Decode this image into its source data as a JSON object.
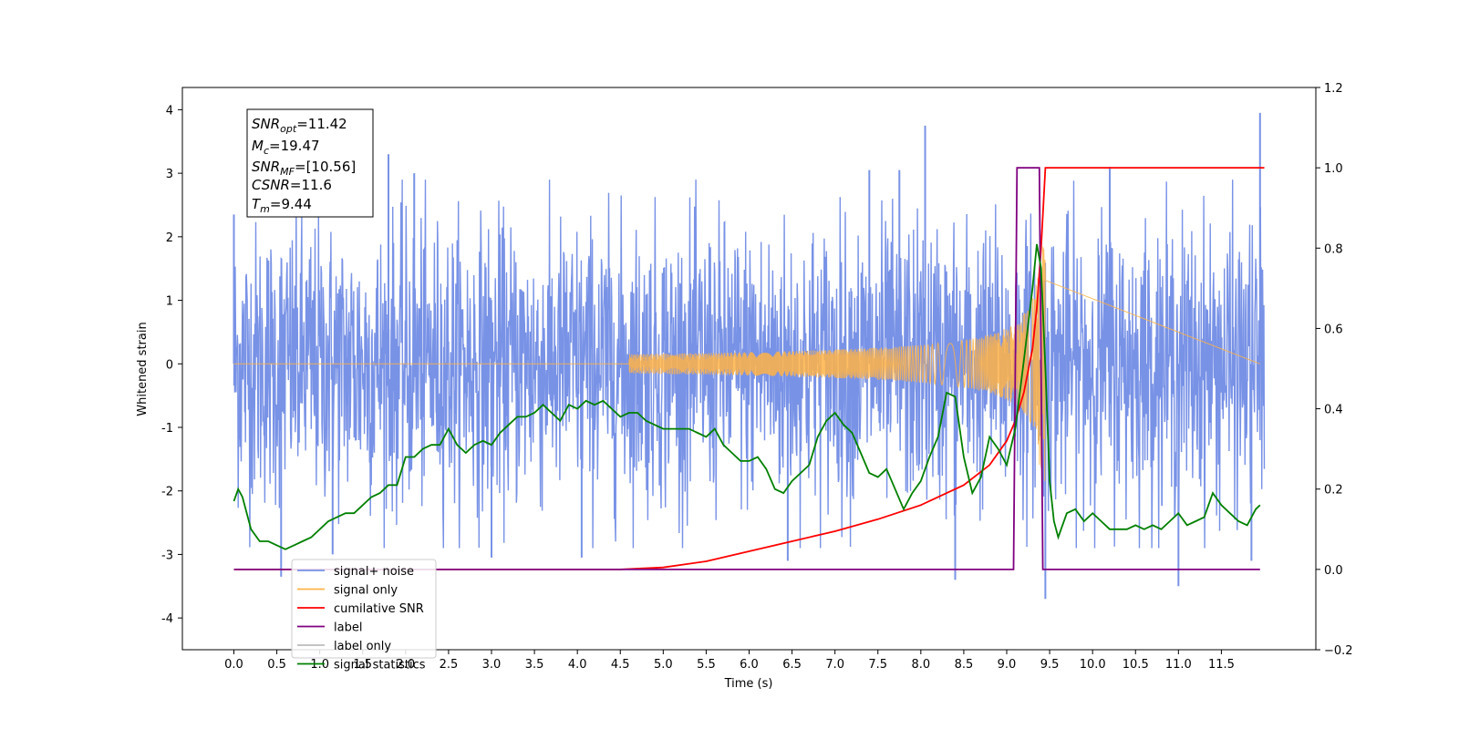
{
  "chart_data": {
    "type": "line",
    "xlabel": "Time (s)",
    "ylabel": "Whitened strain",
    "xlim": [
      -0.6,
      12.6
    ],
    "ylim": [
      -4.5,
      4.35
    ],
    "ylim_right": [
      -0.2,
      1.2
    ],
    "x_ticks": [
      "0.0",
      "0.5",
      "1.0",
      "1.5",
      "2.0",
      "2.5",
      "3.0",
      "3.5",
      "4.0",
      "4.5",
      "5.0",
      "5.5",
      "6.0",
      "6.5",
      "7.0",
      "7.5",
      "8.0",
      "8.5",
      "9.0",
      "9.5",
      "10.0",
      "10.5",
      "11.0",
      "11.5"
    ],
    "y_ticks_left": [
      "4",
      "3",
      "2",
      "1",
      "0",
      "-1",
      "-2",
      "-3",
      "-4"
    ],
    "y_ticks_right": [
      "1.2",
      "1.0",
      "0.8",
      "0.6",
      "0.4",
      "0.2",
      "0.0",
      "−0.2"
    ],
    "legend_position": "lower-left",
    "info_box": {
      "lines": [
        {
          "main": "SNR",
          "sub": "opt",
          "value": "=11.42"
        },
        {
          "main": "M",
          "sub": "c",
          "value": "=19.47"
        },
        {
          "main": "SNR",
          "sub": "MF",
          "value": "=[10.56]"
        },
        {
          "main": "CSNR",
          "sub": "",
          "value": "=11.6"
        },
        {
          "main": "T",
          "sub": "m",
          "value": "=9.44"
        }
      ]
    },
    "series": [
      {
        "name": "signal+ noise",
        "axis": "left",
        "color": "#7892e6",
        "envelope": {
          "x": [
            0.0,
            12.0
          ],
          "typical_abs": 2.0,
          "spikes_x": [
            0.0,
            0.55,
            1.15,
            1.8,
            2.1,
            3.0,
            4.05,
            6.45,
            7.4,
            7.75,
            8.05,
            8.4,
            9.45,
            10.2,
            11.0,
            11.85,
            11.95
          ],
          "spikes_y": [
            2.35,
            -3.35,
            -3.0,
            3.3,
            3.0,
            -3.05,
            -3.05,
            -3.1,
            3.05,
            3.05,
            3.75,
            -3.4,
            -3.7,
            3.1,
            -3.5,
            -3.1,
            3.95
          ]
        }
      },
      {
        "name": "signal only",
        "axis": "left",
        "color": "#ffb347",
        "chirp": {
          "start": 4.6,
          "peak": 9.4,
          "end": 9.45,
          "max_amplitude": 1.9
        }
      },
      {
        "name": "cumilative SNR",
        "axis": "right",
        "color": "#ff0000",
        "x": [
          0.0,
          4.5,
          5.0,
          5.5,
          6.0,
          6.5,
          7.0,
          7.5,
          8.0,
          8.5,
          8.8,
          9.0,
          9.1,
          9.2,
          9.3,
          9.35,
          9.4,
          9.45,
          12.0
        ],
        "values": [
          0.0,
          0.0,
          0.005,
          0.02,
          0.045,
          0.07,
          0.095,
          0.125,
          0.16,
          0.21,
          0.26,
          0.32,
          0.37,
          0.44,
          0.55,
          0.65,
          0.8,
          1.0,
          1.0
        ]
      },
      {
        "name": "label",
        "axis": "right",
        "color": "#800080",
        "x": [
          0.0,
          9.08,
          9.12,
          9.38,
          9.42,
          11.95
        ],
        "values": [
          0.0,
          0.0,
          1.0,
          1.0,
          0.0,
          0.0
        ]
      },
      {
        "name": "label only",
        "axis": "right",
        "color": "#bbbbbb",
        "x": [],
        "values": []
      },
      {
        "name": "signal statistics",
        "axis": "right",
        "color": "#008000",
        "x": [
          0.0,
          0.05,
          0.1,
          0.2,
          0.3,
          0.4,
          0.5,
          0.6,
          0.7,
          0.8,
          0.9,
          1.0,
          1.1,
          1.2,
          1.3,
          1.4,
          1.5,
          1.6,
          1.7,
          1.8,
          1.9,
          2.0,
          2.1,
          2.2,
          2.3,
          2.4,
          2.5,
          2.6,
          2.7,
          2.8,
          2.9,
          3.0,
          3.1,
          3.2,
          3.3,
          3.4,
          3.5,
          3.6,
          3.7,
          3.8,
          3.9,
          4.0,
          4.1,
          4.2,
          4.3,
          4.4,
          4.5,
          4.6,
          4.7,
          4.8,
          4.9,
          5.0,
          5.1,
          5.2,
          5.3,
          5.4,
          5.5,
          5.6,
          5.7,
          5.8,
          5.9,
          6.0,
          6.1,
          6.2,
          6.3,
          6.4,
          6.5,
          6.6,
          6.7,
          6.8,
          6.9,
          7.0,
          7.1,
          7.2,
          7.3,
          7.4,
          7.5,
          7.6,
          7.7,
          7.8,
          7.9,
          8.0,
          8.1,
          8.2,
          8.3,
          8.4,
          8.5,
          8.6,
          8.7,
          8.8,
          8.9,
          9.0,
          9.1,
          9.2,
          9.3,
          9.35,
          9.4,
          9.45,
          9.5,
          9.55,
          9.6,
          9.7,
          9.8,
          9.9,
          10.0,
          10.1,
          10.2,
          10.3,
          10.4,
          10.5,
          10.6,
          10.7,
          10.8,
          10.9,
          11.0,
          11.1,
          11.2,
          11.3,
          11.4,
          11.5,
          11.6,
          11.7,
          11.8,
          11.9,
          11.95
        ],
        "values": [
          0.17,
          0.2,
          0.18,
          0.1,
          0.07,
          0.07,
          0.06,
          0.05,
          0.06,
          0.07,
          0.08,
          0.1,
          0.12,
          0.13,
          0.14,
          0.14,
          0.16,
          0.18,
          0.19,
          0.21,
          0.21,
          0.28,
          0.28,
          0.3,
          0.31,
          0.31,
          0.35,
          0.31,
          0.29,
          0.31,
          0.32,
          0.31,
          0.34,
          0.36,
          0.38,
          0.38,
          0.39,
          0.41,
          0.39,
          0.37,
          0.41,
          0.4,
          0.42,
          0.41,
          0.42,
          0.4,
          0.38,
          0.39,
          0.39,
          0.37,
          0.36,
          0.35,
          0.35,
          0.35,
          0.35,
          0.34,
          0.33,
          0.35,
          0.31,
          0.29,
          0.27,
          0.27,
          0.28,
          0.25,
          0.2,
          0.19,
          0.22,
          0.24,
          0.26,
          0.33,
          0.37,
          0.39,
          0.36,
          0.34,
          0.29,
          0.24,
          0.23,
          0.25,
          0.2,
          0.15,
          0.19,
          0.22,
          0.28,
          0.33,
          0.44,
          0.43,
          0.28,
          0.19,
          0.23,
          0.33,
          0.3,
          0.26,
          0.35,
          0.52,
          0.7,
          0.81,
          0.75,
          0.5,
          0.22,
          0.12,
          0.08,
          0.14,
          0.15,
          0.12,
          0.14,
          0.12,
          0.1,
          0.1,
          0.1,
          0.11,
          0.1,
          0.11,
          0.1,
          0.12,
          0.14,
          0.11,
          0.12,
          0.13,
          0.19,
          0.16,
          0.14,
          0.12,
          0.11,
          0.15,
          0.16
        ]
      }
    ]
  }
}
